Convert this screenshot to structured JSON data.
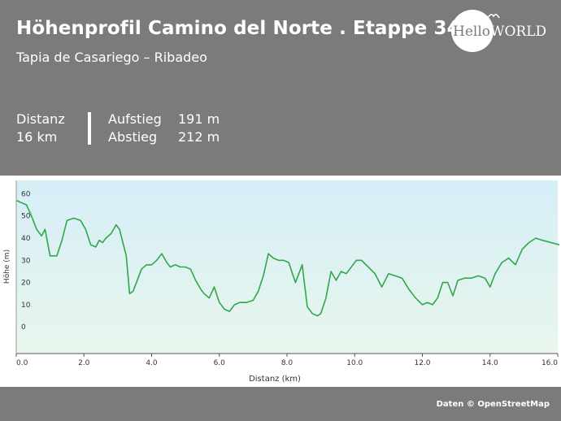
{
  "header": {
    "title": "Höhenprofil Camino del Norte . Etappe 34",
    "subtitle": "Tapia de Casariego – Ribadeo",
    "distance_label": "Distanz",
    "distance_value": "16 km",
    "ascent_label": "Aufstieg",
    "ascent_value": "191 m",
    "descent_label": "Abstieg",
    "descent_value": "212 m",
    "logo_text_left": "Hello",
    "logo_text_right": "WORLD"
  },
  "footer": {
    "credit": "Daten © OpenStreetMap"
  },
  "colors": {
    "line": "#2ea84a",
    "fill_top": "#d6eef8",
    "fill_bottom": "#e8f6ec",
    "header_bg": "#7b7b7b"
  },
  "chart_data": {
    "type": "area",
    "xlabel": "Distanz  (km)",
    "ylabel": "Höhe (m)",
    "xlim": [
      0,
      16
    ],
    "ylim": [
      -12,
      66
    ],
    "xticks": [
      "0.0",
      "2.0",
      "4.0",
      "6.0",
      "8.0",
      "10.0",
      "12.0",
      "14.0",
      "16.0"
    ],
    "yticks": [
      "0",
      "10",
      "20",
      "30",
      "40",
      "50",
      "60"
    ],
    "grid": false,
    "x": [
      0.0,
      0.15,
      0.3,
      0.45,
      0.6,
      0.75,
      0.85,
      1.0,
      1.2,
      1.35,
      1.5,
      1.7,
      1.9,
      2.05,
      2.2,
      2.35,
      2.45,
      2.55,
      2.65,
      2.8,
      2.95,
      3.05,
      3.15,
      3.25,
      3.35,
      3.45,
      3.55,
      3.7,
      3.85,
      4.0,
      4.15,
      4.3,
      4.45,
      4.55,
      4.7,
      4.85,
      5.0,
      5.15,
      5.3,
      5.45,
      5.55,
      5.7,
      5.85,
      6.0,
      6.15,
      6.3,
      6.45,
      6.6,
      6.8,
      7.0,
      7.15,
      7.3,
      7.45,
      7.6,
      7.75,
      7.9,
      8.05,
      8.25,
      8.45,
      8.6,
      8.75,
      8.9,
      9.0,
      9.15,
      9.3,
      9.45,
      9.6,
      9.75,
      9.9,
      10.05,
      10.2,
      10.4,
      10.6,
      10.8,
      11.0,
      11.2,
      11.4,
      11.6,
      11.8,
      12.0,
      12.15,
      12.3,
      12.45,
      12.6,
      12.75,
      12.9,
      13.05,
      13.25,
      13.45,
      13.65,
      13.85,
      14.0,
      14.15,
      14.35,
      14.55,
      14.75,
      14.95,
      15.15,
      15.35,
      15.55,
      15.8,
      16.05
    ],
    "y": [
      57,
      56,
      55,
      50,
      44,
      41,
      44,
      32,
      32,
      39,
      48,
      49,
      48,
      44,
      37,
      36,
      39,
      38,
      40,
      42,
      46,
      44,
      38,
      32,
      15,
      16,
      20,
      26,
      28,
      28,
      30,
      33,
      29,
      27,
      28,
      27,
      27,
      26,
      21,
      17,
      15,
      13,
      18,
      11,
      8,
      7,
      10,
      11,
      11,
      12,
      16,
      23,
      33,
      31,
      30,
      30,
      29,
      20,
      28,
      9,
      6,
      5,
      6,
      13,
      25,
      21,
      25,
      24,
      27,
      30,
      30,
      27,
      24,
      18,
      24,
      23,
      22,
      17,
      13,
      10,
      11,
      10,
      13,
      20,
      20,
      14,
      21,
      22,
      22,
      23,
      22,
      18,
      24,
      29,
      31,
      28,
      35,
      38,
      40,
      39,
      38,
      37
    ]
  }
}
